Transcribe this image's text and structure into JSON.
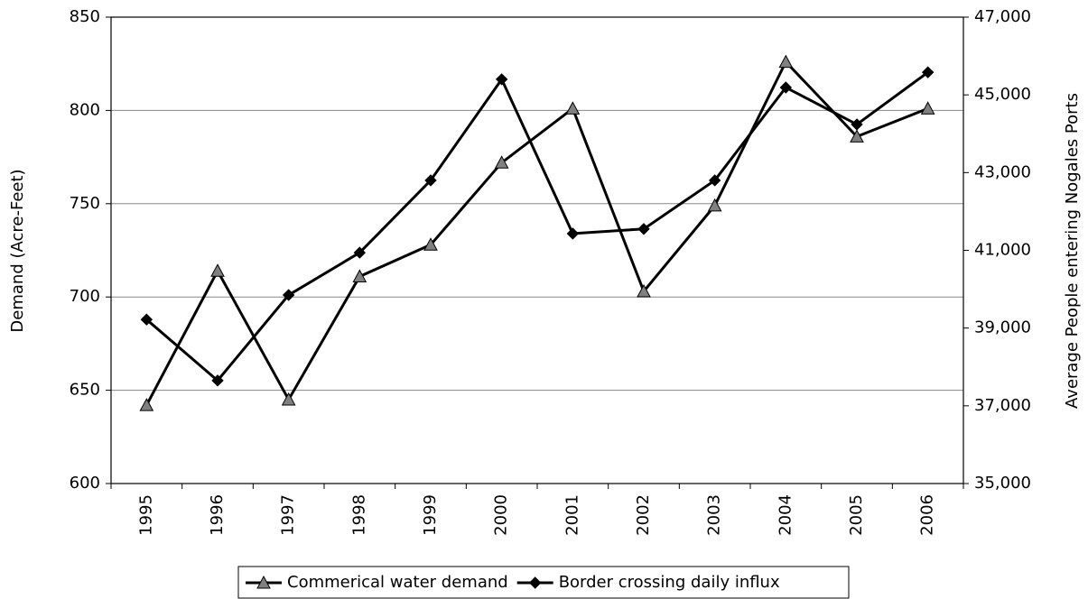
{
  "chart_data": {
    "type": "line",
    "categories": [
      "1995",
      "1996",
      "1997",
      "1998",
      "1999",
      "2000",
      "2001",
      "2002",
      "2003",
      "2004",
      "2005",
      "2006"
    ],
    "series": [
      {
        "name": "Commerical water demand",
        "color": "#000000",
        "marker": "triangle",
        "marker_color": "#808080",
        "values": [
          642,
          714,
          645,
          711,
          728,
          772,
          801,
          703,
          749,
          826,
          786,
          801
        ]
      },
      {
        "name": "Border crossing daily influx",
        "color": "#000000",
        "marker": "diamond",
        "marker_color": "#000000",
        "axis": "y2",
        "values": [
          39220,
          37650,
          39850,
          40940,
          42800,
          45400,
          41430,
          41550,
          42800,
          45190,
          44240,
          45580
        ]
      }
    ],
    "ylabel": "Demand (Acre-Feet)",
    "y2label": "Average People entering Nogales Ports",
    "ylim": [
      600,
      850
    ],
    "yticks": [
      600,
      650,
      700,
      750,
      800,
      850
    ],
    "y2lim": [
      35000,
      47000
    ],
    "y2ticks": [
      {
        "value": 35000,
        "label": "35,000"
      },
      {
        "value": 37000,
        "label": "37,000"
      },
      {
        "value": 39000,
        "label": "39,000"
      },
      {
        "value": 41000,
        "label": "41,000"
      },
      {
        "value": 43000,
        "label": "43,000"
      },
      {
        "value": 45000,
        "label": "45,000"
      },
      {
        "value": 47000,
        "label": "47,000"
      }
    ],
    "grid": true,
    "legend": "bottom"
  }
}
